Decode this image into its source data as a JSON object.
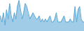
{
  "chart_data": {
    "type": "area",
    "series": [
      {
        "type": "area",
        "color": "#a0cce8",
        "values": [
          5,
          3,
          6,
          2,
          7,
          4,
          9,
          5,
          3,
          6,
          4,
          8,
          10,
          7,
          4,
          6,
          9,
          8,
          6,
          4,
          5,
          6,
          5,
          4,
          4,
          5,
          3,
          4,
          3,
          4,
          3,
          4,
          5,
          3,
          3,
          4,
          6,
          3,
          3,
          3,
          4,
          5,
          3,
          3,
          3,
          4,
          3,
          3,
          8,
          3,
          7,
          8,
          4,
          3,
          3
        ]
      },
      {
        "type": "line",
        "color": "#5ba8d4",
        "values": [
          5,
          3,
          6,
          2,
          7,
          4,
          9,
          5,
          3,
          6,
          4,
          8,
          10,
          7,
          4,
          6,
          9,
          8,
          6,
          4,
          5,
          6,
          5,
          4,
          4,
          5,
          3,
          4,
          3,
          4,
          3,
          4,
          5,
          3,
          3,
          4,
          6,
          3,
          3,
          3,
          4,
          5,
          3,
          3,
          3,
          4,
          3,
          3,
          8,
          3,
          7,
          8,
          4,
          3,
          3
        ]
      }
    ],
    "xlim": [
      0,
      54
    ],
    "ylim": [
      0,
      10
    ],
    "tick_labels": false,
    "grid": false
  }
}
